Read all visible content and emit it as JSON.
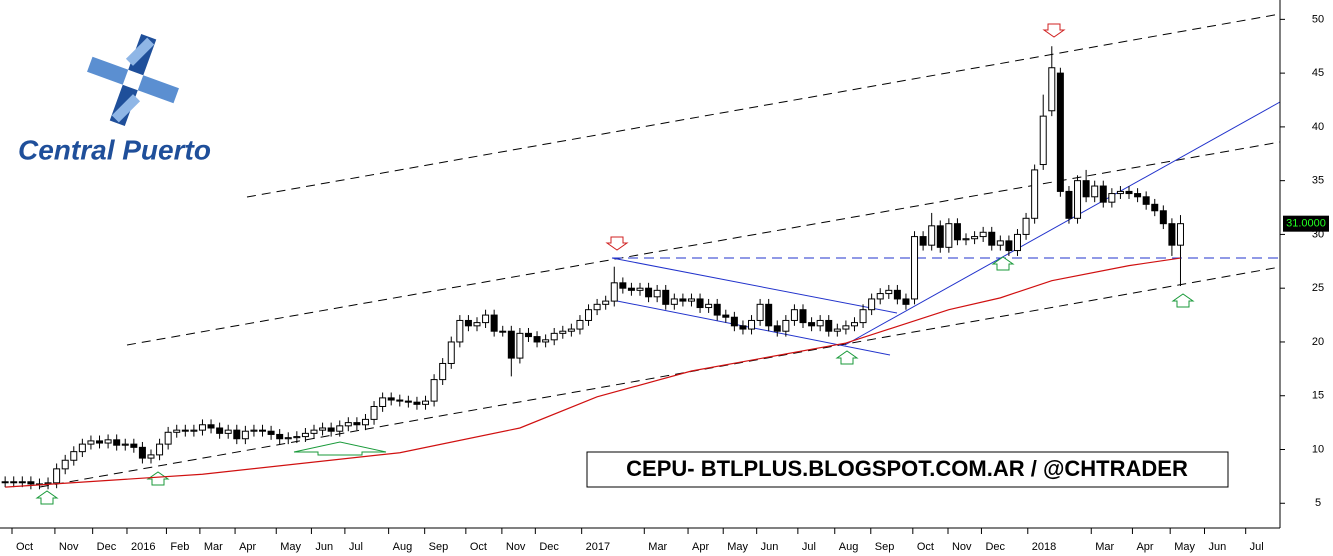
{
  "chart_data": {
    "type": "candlestick",
    "logo_text": "Central Puerto",
    "watermark": "CEPU- BTLPLUS.BLOGSPOT.COM.AR / @CHTRADER",
    "last_price": {
      "value": 31,
      "label": "31.0000"
    },
    "up_color": "#ffffff",
    "down_color": "#000000",
    "ylim": [
      2.7,
      51.8
    ],
    "yticks": [
      5,
      10,
      15,
      20,
      25,
      30,
      35,
      40,
      45,
      50
    ],
    "xlim": [
      -0.6,
      148.6
    ],
    "xticks": [
      {
        "value": 0.8,
        "label": "Oct"
      },
      {
        "value": 5.8,
        "label": "Nov"
      },
      {
        "value": 10.2,
        "label": "Dec"
      },
      {
        "value": 14.2,
        "label": "2016"
      },
      {
        "value": 18.8,
        "label": "Feb"
      },
      {
        "value": 22.7,
        "label": "Mar"
      },
      {
        "value": 26.8,
        "label": "Apr"
      },
      {
        "value": 31.6,
        "label": "May"
      },
      {
        "value": 35.7,
        "label": "Jun"
      },
      {
        "value": 39.6,
        "label": "Jul"
      },
      {
        "value": 44.7,
        "label": "Aug"
      },
      {
        "value": 48.9,
        "label": "Sep"
      },
      {
        "value": 53.7,
        "label": "Oct"
      },
      {
        "value": 57.9,
        "label": "Nov"
      },
      {
        "value": 61.8,
        "label": "Dec"
      },
      {
        "value": 67.2,
        "label": "2017"
      },
      {
        "value": 74.5,
        "label": "Mar"
      },
      {
        "value": 79.6,
        "label": "Apr"
      },
      {
        "value": 83.7,
        "label": "May"
      },
      {
        "value": 87.6,
        "label": "Jun"
      },
      {
        "value": 92.4,
        "label": "Jul"
      },
      {
        "value": 96.7,
        "label": "Aug"
      },
      {
        "value": 100.9,
        "label": "Sep"
      },
      {
        "value": 105.8,
        "label": "Oct"
      },
      {
        "value": 109.9,
        "label": "Nov"
      },
      {
        "value": 113.8,
        "label": "Dec"
      },
      {
        "value": 119.2,
        "label": "2018"
      },
      {
        "value": 126.6,
        "label": "Mar"
      },
      {
        "value": 131.4,
        "label": "Apr"
      },
      {
        "value": 135.8,
        "label": "May"
      },
      {
        "value": 139.8,
        "label": "Jun"
      },
      {
        "value": 144.6,
        "label": "Jul"
      }
    ],
    "open": [
      7,
      7,
      7,
      7,
      6.8,
      6.8,
      6.9,
      8.2,
      9,
      9.8,
      10.5,
      10.8,
      10.6,
      10.9,
      10.4,
      10.5,
      10.2,
      9.2,
      9.5,
      10.5,
      11.6,
      11.8,
      11.7,
      11.8,
      12.3,
      12,
      11.5,
      11.8,
      11,
      11.7,
      11.8,
      11.7,
      11.4,
      11,
      11.1,
      11.2,
      11.5,
      11.8,
      12,
      11.7,
      12.2,
      12.5,
      12.3,
      12.8,
      14,
      14.8,
      14.6,
      14.5,
      14.4,
      14.2,
      14.5,
      16.5,
      18,
      20,
      22,
      21.5,
      21.8,
      22.5,
      21,
      21,
      18.5,
      20.8,
      20.5,
      20,
      20.2,
      20.8,
      21,
      21.2,
      22,
      23,
      23.5,
      23.8,
      25.5,
      25,
      24.8,
      25,
      24.2,
      24.8,
      23.5,
      24,
      23.8,
      24,
      23.2,
      23.5,
      22.5,
      22.3,
      21.5,
      21.2,
      22,
      23.5,
      21.5,
      21,
      22,
      23,
      21.8,
      21.5,
      22,
      21,
      21.2,
      21.5,
      21.8,
      23,
      24,
      24.5,
      24.8,
      24,
      24,
      29.8,
      29,
      30.8,
      28.8,
      31,
      29.5,
      29.6,
      29.8,
      30.2,
      29,
      29.4,
      28.5,
      30,
      31.5,
      36.5,
      41.5,
      45,
      34,
      31.5,
      35,
      33.5,
      34.5,
      33,
      33.8,
      34,
      33.8,
      33.5,
      32.8,
      32.2,
      31,
      29
    ],
    "high": [
      7.5,
      7.5,
      7.5,
      7.5,
      7.3,
      7.4,
      8.7,
      9.5,
      10.3,
      11,
      11.3,
      11.3,
      11.4,
      11.4,
      11,
      11,
      10.7,
      10,
      11,
      12.1,
      12.3,
      12.3,
      12.3,
      12.8,
      12.8,
      12.5,
      12.3,
      12.3,
      12.2,
      12.3,
      12.3,
      12.2,
      11.9,
      11.6,
      11.7,
      12,
      12.3,
      12.5,
      12.5,
      12.7,
      13,
      13,
      13.3,
      14.5,
      15.3,
      15.3,
      15.1,
      15,
      14.9,
      15,
      17,
      18.5,
      20.5,
      22.5,
      22.5,
      22.3,
      23,
      23,
      21.5,
      21.5,
      21.3,
      21.3,
      21,
      20.7,
      21.3,
      21.5,
      21.7,
      22.5,
      23.5,
      24,
      24.3,
      27,
      26,
      25.5,
      25.5,
      25.5,
      25.3,
      25.3,
      24.5,
      24.5,
      24.5,
      24.5,
      24,
      24,
      23,
      22.8,
      22,
      22.5,
      24,
      24,
      22,
      22.5,
      23.5,
      23.5,
      22.3,
      22.5,
      22.5,
      21.7,
      22,
      22.3,
      23.5,
      24.5,
      25,
      25.3,
      25.3,
      24.5,
      30.3,
      30.3,
      32,
      31.3,
      31.5,
      31.5,
      30.1,
      30.3,
      30.7,
      30.7,
      29.9,
      29.9,
      30.5,
      32,
      36.5,
      43,
      47.5,
      45.5,
      34.5,
      35.5,
      36,
      35,
      35,
      34.3,
      34.5,
      34.5,
      34.3,
      34,
      33.3,
      32.7,
      31.5,
      31.8
    ],
    "low": [
      6.5,
      6.5,
      6.5,
      6.3,
      6.3,
      6.3,
      6.4,
      7.7,
      8.5,
      9.3,
      10,
      10.1,
      10.1,
      9.9,
      9.9,
      9.7,
      8.7,
      8.7,
      9,
      10,
      11.1,
      11.2,
      11.2,
      11.3,
      11.5,
      11,
      11,
      10.5,
      10.5,
      11.2,
      11.2,
      10.9,
      10.5,
      10.5,
      10.6,
      10.7,
      11,
      11.3,
      11.2,
      11.2,
      11.7,
      11.8,
      11.8,
      12.3,
      13.5,
      14.1,
      14,
      13.9,
      13.7,
      13.7,
      14,
      16,
      17.5,
      19.5,
      21,
      21,
      21.3,
      20.5,
      20.5,
      16.8,
      18,
      20,
      19.5,
      19.5,
      19.7,
      20.3,
      20.5,
      20.7,
      21.5,
      22.5,
      23,
      23.3,
      24.5,
      24.3,
      24.3,
      23.7,
      23.7,
      23,
      23,
      23.3,
      23.3,
      22.7,
      22.7,
      22,
      21.8,
      21,
      20.7,
      20.7,
      21.5,
      21,
      20.5,
      20.5,
      21.5,
      21.3,
      21,
      21,
      20.5,
      20.5,
      20.7,
      21,
      21.3,
      22.5,
      23.5,
      24,
      23.5,
      23,
      23.5,
      28.5,
      28.5,
      28.3,
      28.3,
      29,
      29,
      29.1,
      29.3,
      28.5,
      28.5,
      28,
      28,
      29.5,
      31,
      36,
      41,
      33.5,
      31,
      31,
      33,
      33,
      32.5,
      32.5,
      33.3,
      33.3,
      33,
      32.3,
      31.7,
      30.5,
      28,
      25.2
    ],
    "close": [
      7,
      7,
      7,
      6.8,
      6.8,
      6.9,
      8.2,
      9,
      9.8,
      10.5,
      10.8,
      10.6,
      10.9,
      10.4,
      10.5,
      10.2,
      9.2,
      9.5,
      10.5,
      11.6,
      11.8,
      11.7,
      11.8,
      12.3,
      12,
      11.5,
      11.8,
      11,
      11.7,
      11.8,
      11.7,
      11.4,
      11,
      11.1,
      11.2,
      11.5,
      11.8,
      12,
      11.7,
      12.2,
      12.5,
      12.3,
      12.8,
      14,
      14.8,
      14.6,
      14.5,
      14.4,
      14.2,
      14.5,
      16.5,
      18,
      20,
      22,
      21.5,
      21.8,
      22.5,
      21,
      21,
      18.5,
      20.8,
      20.5,
      20,
      20.2,
      20.8,
      21,
      21.2,
      22,
      23,
      23.5,
      23.8,
      25.5,
      25,
      24.8,
      25,
      24.2,
      24.8,
      23.5,
      24,
      23.8,
      24,
      23.2,
      23.5,
      22.5,
      22.3,
      21.5,
      21.2,
      22,
      23.5,
      21.5,
      21,
      22,
      23,
      21.8,
      21.5,
      22,
      21,
      21.2,
      21.5,
      21.8,
      23,
      24,
      24.5,
      24.8,
      24,
      23.5,
      29.8,
      29,
      30.8,
      28.8,
      31,
      29.5,
      29.6,
      29.8,
      30.2,
      29,
      29.4,
      28.5,
      30,
      31.5,
      36,
      41,
      45.5,
      34,
      31.5,
      35,
      33.5,
      34.5,
      33,
      33.8,
      34,
      33.8,
      33.5,
      32.8,
      32.2,
      31,
      29,
      31
    ],
    "ma": {
      "color": "#d01010",
      "x": [
        0,
        23,
        46,
        60,
        69,
        80,
        98,
        110,
        116,
        122,
        131,
        137
      ],
      "values": [
        6.5,
        7.7,
        9.7,
        12.0,
        14.9,
        17.3,
        19.9,
        23.0,
        24.1,
        25.7,
        27.1,
        27.8
      ]
    }
  }
}
